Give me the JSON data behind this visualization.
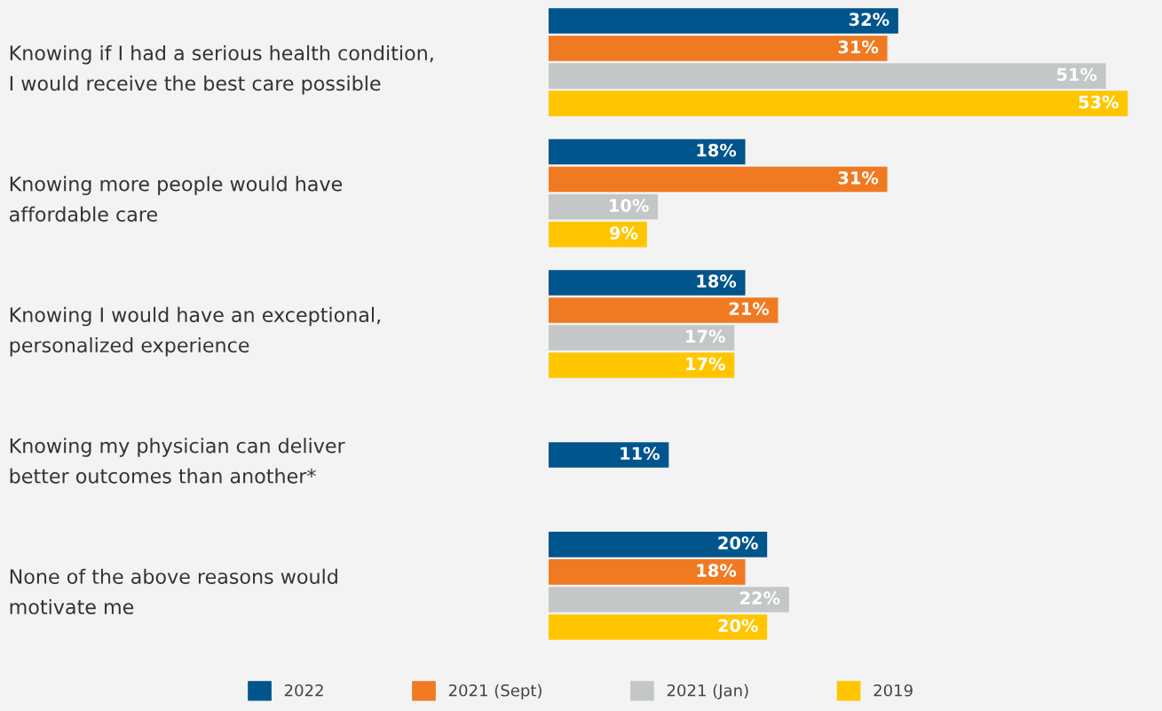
{
  "chart_data": {
    "type": "bar",
    "orientation": "horizontal",
    "categories": [
      "Knowing if I had a serious health condition,\nI would receive the best care possible",
      "Knowing more people would have\naffordable care",
      "Knowing I would have an exceptional,\npersonalized experience",
      "Knowing my physician can deliver\nbetter outcomes than another*",
      "None of the above reasons would\nmotivate me"
    ],
    "series": [
      {
        "name": "2022",
        "color": "#00558c",
        "values": [
          32,
          18,
          18,
          11,
          20
        ],
        "value_labels": [
          "32%",
          "18%",
          "18%",
          "11%",
          "20%"
        ]
      },
      {
        "name": "2021 (Sept)",
        "color": "#f07a22",
        "values": [
          31,
          31,
          21,
          null,
          18
        ],
        "value_labels": [
          "31%",
          "31%",
          "21%",
          null,
          "18%"
        ]
      },
      {
        "name": "2021 (Jan)",
        "color": "#c3c7c7",
        "values": [
          51,
          10,
          17,
          null,
          22
        ],
        "value_labels": [
          "51%",
          "10%",
          "17%",
          null,
          "22%"
        ]
      },
      {
        "name": "2019",
        "color": "#ffc600",
        "values": [
          53,
          9,
          17,
          null,
          20
        ],
        "value_labels": [
          "53%",
          "9%",
          "17%",
          null,
          "20%"
        ]
      }
    ],
    "legend": "bottom",
    "grid": false
  }
}
